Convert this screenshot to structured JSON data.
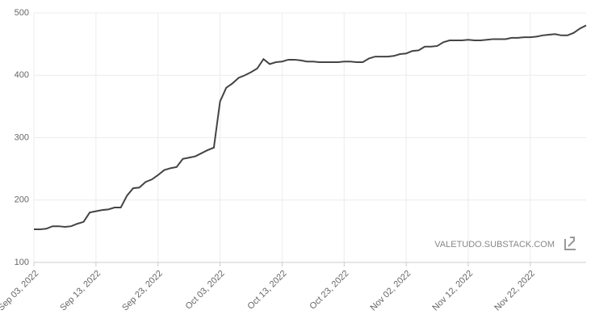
{
  "chart_data": {
    "type": "line",
    "x": [
      "2022-09-03",
      "2022-09-04",
      "2022-09-05",
      "2022-09-06",
      "2022-09-07",
      "2022-09-08",
      "2022-09-09",
      "2022-09-10",
      "2022-09-11",
      "2022-09-12",
      "2022-09-13",
      "2022-09-14",
      "2022-09-15",
      "2022-09-16",
      "2022-09-17",
      "2022-09-18",
      "2022-09-19",
      "2022-09-20",
      "2022-09-21",
      "2022-09-22",
      "2022-09-23",
      "2022-09-24",
      "2022-09-25",
      "2022-09-26",
      "2022-09-27",
      "2022-09-28",
      "2022-09-29",
      "2022-09-30",
      "2022-10-01",
      "2022-10-02",
      "2022-10-03",
      "2022-10-04",
      "2022-10-05",
      "2022-10-06",
      "2022-10-07",
      "2022-10-08",
      "2022-10-09",
      "2022-10-10",
      "2022-10-11",
      "2022-10-12",
      "2022-10-13",
      "2022-10-14",
      "2022-10-15",
      "2022-10-16",
      "2022-10-17",
      "2022-10-18",
      "2022-10-19",
      "2022-10-20",
      "2022-10-21",
      "2022-10-22",
      "2022-10-23",
      "2022-10-24",
      "2022-10-25",
      "2022-10-26",
      "2022-10-27",
      "2022-10-28",
      "2022-10-29",
      "2022-10-30",
      "2022-10-31",
      "2022-11-01",
      "2022-11-02",
      "2022-11-03",
      "2022-11-04",
      "2022-11-05",
      "2022-11-06",
      "2022-11-07",
      "2022-11-08",
      "2022-11-09",
      "2022-11-10",
      "2022-11-11",
      "2022-11-12",
      "2022-11-13",
      "2022-11-14",
      "2022-11-15",
      "2022-11-16",
      "2022-11-17",
      "2022-11-18",
      "2022-11-19",
      "2022-11-20",
      "2022-11-21",
      "2022-11-22",
      "2022-11-23",
      "2022-11-24",
      "2022-11-25",
      "2022-11-26",
      "2022-11-27",
      "2022-11-28",
      "2022-11-29",
      "2022-11-30",
      "2022-12-01"
    ],
    "series": [
      {
        "color": "#444444",
        "values": [
          153,
          153,
          154,
          158,
          158,
          157,
          158,
          162,
          165,
          180,
          182,
          184,
          185,
          188,
          188,
          207,
          219,
          220,
          229,
          233,
          240,
          248,
          251,
          253,
          266,
          268,
          270,
          275,
          280,
          284,
          358,
          380,
          387,
          396,
          400,
          405,
          411,
          426,
          418,
          421,
          422,
          425,
          425,
          424,
          422,
          422,
          421,
          421,
          421,
          421,
          422,
          422,
          421,
          421,
          427,
          430,
          430,
          430,
          431,
          434,
          435,
          439,
          440,
          446,
          446,
          447,
          453,
          456,
          456,
          456,
          457,
          456,
          456,
          457,
          458,
          458,
          458,
          460,
          460,
          461,
          461,
          462,
          464,
          465,
          466,
          464,
          464,
          468,
          475,
          480
        ]
      }
    ],
    "xlim": [
      "2022-09-03",
      "2022-12-01"
    ],
    "xticks": [
      {
        "value": "2022-09-03",
        "label": "Sep 03, 2022"
      },
      {
        "value": "2022-09-13",
        "label": "Sep 13, 2022"
      },
      {
        "value": "2022-09-23",
        "label": "Sep 23, 2022"
      },
      {
        "value": "2022-10-03",
        "label": "Oct 03, 2022"
      },
      {
        "value": "2022-10-13",
        "label": "Oct 13, 2022"
      },
      {
        "value": "2022-10-23",
        "label": "Oct 23, 2022"
      },
      {
        "value": "2022-11-02",
        "label": "Nov 02, 2022"
      },
      {
        "value": "2022-11-12",
        "label": "Nov 12, 2022"
      },
      {
        "value": "2022-11-22",
        "label": "Nov 22, 2022"
      }
    ],
    "ylim": [
      100,
      500
    ],
    "yticks": [
      100,
      200,
      300,
      400,
      500
    ],
    "grid": true,
    "watermark": "VALETUDO.SUBSTACK.COM"
  }
}
